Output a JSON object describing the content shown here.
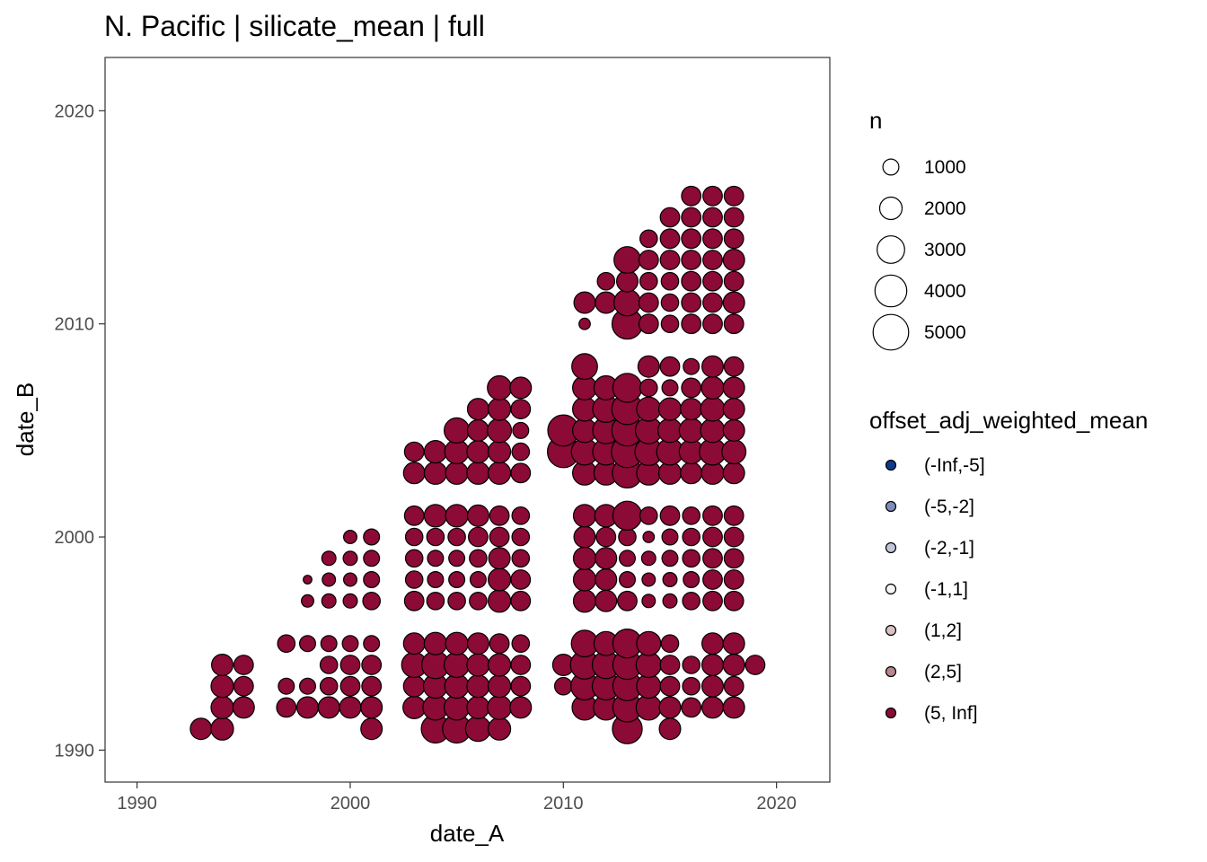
{
  "chart_data": {
    "type": "scatter",
    "title": "N. Pacific | silicate_mean | full",
    "xlabel": "date_A",
    "ylabel": "date_B",
    "xlim": [
      1988.5,
      2022.5
    ],
    "ylim": [
      1988.5,
      2022.5
    ],
    "x_ticks": [
      1990,
      2000,
      2010,
      2020
    ],
    "y_ticks": [
      1990,
      2000,
      2010,
      2020
    ],
    "grid": false,
    "legend_position": "right",
    "size_legend": {
      "title": "n",
      "entries": [
        {
          "label": "1000",
          "value": 1000
        },
        {
          "label": "2000",
          "value": 2000
        },
        {
          "label": "3000",
          "value": 3000
        },
        {
          "label": "4000",
          "value": 4000
        },
        {
          "label": "5000",
          "value": 5000
        }
      ]
    },
    "color_legend": {
      "title": "offset_adj_weighted_mean",
      "entries": [
        {
          "label": "(-Inf,-5]",
          "color": "#0d3b8c"
        },
        {
          "label": "(-5,-2]",
          "color": "#7e8dbb"
        },
        {
          "label": "(-2,-1]",
          "color": "#c2c5db"
        },
        {
          "label": "(-1,1]",
          "color": "#f5f5f5"
        },
        {
          "label": "(1,2]",
          "color": "#dbc0c4"
        },
        {
          "label": "(2,5]",
          "color": "#b7868f"
        },
        {
          "label": "(5, Inf]",
          "color": "#8b0a36"
        }
      ]
    },
    "series_color_class": "(5, Inf]",
    "points": [
      [
        1993,
        1991,
        1800
      ],
      [
        1994,
        1991,
        2000
      ],
      [
        1994,
        1992,
        2000
      ],
      [
        1994,
        1993,
        2000
      ],
      [
        1994,
        1994,
        1800
      ],
      [
        1995,
        1992,
        1800
      ],
      [
        1995,
        1993,
        1500
      ],
      [
        1995,
        1994,
        1500
      ],
      [
        1997,
        1992,
        1500
      ],
      [
        1997,
        1993,
        1000
      ],
      [
        1997,
        1995,
        1200
      ],
      [
        1998,
        1992,
        1800
      ],
      [
        1998,
        1993,
        1000
      ],
      [
        1998,
        1995,
        1000
      ],
      [
        1998,
        1997,
        600
      ],
      [
        1998,
        1998,
        300
      ],
      [
        1999,
        1992,
        1800
      ],
      [
        1999,
        1993,
        1200
      ],
      [
        1999,
        1994,
        1200
      ],
      [
        1999,
        1995,
        1000
      ],
      [
        1999,
        1997,
        800
      ],
      [
        1999,
        1998,
        700
      ],
      [
        1999,
        1999,
        800
      ],
      [
        2000,
        1992,
        1800
      ],
      [
        2000,
        1993,
        1500
      ],
      [
        2000,
        1994,
        1500
      ],
      [
        2000,
        1995,
        1000
      ],
      [
        2000,
        1997,
        800
      ],
      [
        2000,
        1998,
        700
      ],
      [
        2000,
        1999,
        800
      ],
      [
        2000,
        2000,
        700
      ],
      [
        2001,
        1991,
        1800
      ],
      [
        2001,
        1992,
        1800
      ],
      [
        2001,
        1993,
        1500
      ],
      [
        2001,
        1994,
        1500
      ],
      [
        2001,
        1995,
        1000
      ],
      [
        2001,
        1997,
        1200
      ],
      [
        2001,
        1998,
        1000
      ],
      [
        2001,
        1999,
        1000
      ],
      [
        2001,
        2000,
        1000
      ],
      [
        2003,
        1992,
        2000
      ],
      [
        2003,
        1993,
        1800
      ],
      [
        2003,
        1994,
        2500
      ],
      [
        2003,
        1995,
        1800
      ],
      [
        2003,
        1997,
        1500
      ],
      [
        2003,
        1998,
        1200
      ],
      [
        2003,
        1999,
        1200
      ],
      [
        2003,
        2000,
        1200
      ],
      [
        2003,
        2001,
        1500
      ],
      [
        2003,
        2003,
        1800
      ],
      [
        2003,
        2004,
        1500
      ],
      [
        2004,
        1991,
        3200
      ],
      [
        2004,
        1992,
        2500
      ],
      [
        2004,
        1993,
        2300
      ],
      [
        2004,
        1994,
        3000
      ],
      [
        2004,
        1995,
        2000
      ],
      [
        2004,
        1997,
        1200
      ],
      [
        2004,
        1998,
        1000
      ],
      [
        2004,
        1999,
        1000
      ],
      [
        2004,
        2000,
        1200
      ],
      [
        2004,
        2001,
        2000
      ],
      [
        2004,
        2003,
        2000
      ],
      [
        2004,
        2004,
        2000
      ],
      [
        2005,
        1991,
        3200
      ],
      [
        2005,
        1992,
        2500
      ],
      [
        2005,
        1993,
        2300
      ],
      [
        2005,
        1994,
        2500
      ],
      [
        2005,
        1995,
        2000
      ],
      [
        2005,
        1997,
        1200
      ],
      [
        2005,
        1998,
        1000
      ],
      [
        2005,
        1999,
        1000
      ],
      [
        2005,
        2000,
        1200
      ],
      [
        2005,
        2001,
        2000
      ],
      [
        2005,
        2003,
        2000
      ],
      [
        2005,
        2004,
        2300
      ],
      [
        2005,
        2005,
        2500
      ],
      [
        2006,
        1991,
        2500
      ],
      [
        2006,
        1992,
        2000
      ],
      [
        2006,
        1993,
        2000
      ],
      [
        2006,
        1994,
        2000
      ],
      [
        2006,
        1995,
        1800
      ],
      [
        2006,
        1997,
        1200
      ],
      [
        2006,
        1998,
        1000
      ],
      [
        2006,
        1999,
        1200
      ],
      [
        2006,
        2000,
        1500
      ],
      [
        2006,
        2001,
        1800
      ],
      [
        2006,
        2003,
        2000
      ],
      [
        2006,
        2004,
        2000
      ],
      [
        2006,
        2005,
        1800
      ],
      [
        2006,
        2006,
        1800
      ],
      [
        2007,
        1991,
        2000
      ],
      [
        2007,
        1992,
        2300
      ],
      [
        2007,
        1993,
        2000
      ],
      [
        2007,
        1994,
        2000
      ],
      [
        2007,
        1995,
        1500
      ],
      [
        2007,
        1997,
        2000
      ],
      [
        2007,
        1998,
        2000
      ],
      [
        2007,
        1999,
        1800
      ],
      [
        2007,
        2000,
        1500
      ],
      [
        2007,
        2001,
        1500
      ],
      [
        2007,
        2003,
        2000
      ],
      [
        2007,
        2004,
        2000
      ],
      [
        2007,
        2005,
        2300
      ],
      [
        2007,
        2006,
        2000
      ],
      [
        2007,
        2007,
        2300
      ],
      [
        2008,
        1992,
        1800
      ],
      [
        2008,
        1993,
        1500
      ],
      [
        2008,
        1994,
        1500
      ],
      [
        2008,
        1995,
        1200
      ],
      [
        2008,
        1997,
        1500
      ],
      [
        2008,
        1998,
        1500
      ],
      [
        2008,
        1999,
        1200
      ],
      [
        2008,
        2000,
        1200
      ],
      [
        2008,
        2001,
        1200
      ],
      [
        2008,
        2003,
        1500
      ],
      [
        2008,
        2004,
        1200
      ],
      [
        2008,
        2005,
        1000
      ],
      [
        2008,
        2006,
        1500
      ],
      [
        2008,
        2007,
        1800
      ],
      [
        2010,
        1993,
        1200
      ],
      [
        2010,
        1994,
        1800
      ],
      [
        2010,
        2004,
        4000
      ],
      [
        2010,
        2005,
        3800
      ],
      [
        2011,
        1992,
        2500
      ],
      [
        2011,
        1993,
        3000
      ],
      [
        2011,
        1994,
        3200
      ],
      [
        2011,
        1995,
        2800
      ],
      [
        2011,
        1997,
        2000
      ],
      [
        2011,
        1998,
        2000
      ],
      [
        2011,
        1999,
        2000
      ],
      [
        2011,
        2000,
        1800
      ],
      [
        2011,
        2001,
        2000
      ],
      [
        2011,
        2003,
        2300
      ],
      [
        2011,
        2004,
        2800
      ],
      [
        2011,
        2005,
        2300
      ],
      [
        2011,
        2006,
        2300
      ],
      [
        2011,
        2007,
        2300
      ],
      [
        2011,
        2008,
        2600
      ],
      [
        2011,
        2010,
        500
      ],
      [
        2011,
        2011,
        1800
      ],
      [
        2012,
        1992,
        2500
      ],
      [
        2012,
        1993,
        3000
      ],
      [
        2012,
        1994,
        3000
      ],
      [
        2012,
        1995,
        2300
      ],
      [
        2012,
        1997,
        1800
      ],
      [
        2012,
        1998,
        1800
      ],
      [
        2012,
        1999,
        1800
      ],
      [
        2012,
        2000,
        1500
      ],
      [
        2012,
        2001,
        2000
      ],
      [
        2012,
        2003,
        2300
      ],
      [
        2012,
        2004,
        2800
      ],
      [
        2012,
        2005,
        2800
      ],
      [
        2012,
        2006,
        2800
      ],
      [
        2012,
        2007,
        2300
      ],
      [
        2012,
        2011,
        1800
      ],
      [
        2012,
        2012,
        1200
      ],
      [
        2013,
        1991,
        3500
      ],
      [
        2013,
        1992,
        3300
      ],
      [
        2013,
        1993,
        3300
      ],
      [
        2013,
        1994,
        3300
      ],
      [
        2013,
        1995,
        3300
      ],
      [
        2013,
        1997,
        1500
      ],
      [
        2013,
        1998,
        1000
      ],
      [
        2013,
        1999,
        1000
      ],
      [
        2013,
        2000,
        1200
      ],
      [
        2013,
        2001,
        3300
      ],
      [
        2013,
        2003,
        3500
      ],
      [
        2013,
        2004,
        4000
      ],
      [
        2013,
        2005,
        3800
      ],
      [
        2013,
        2006,
        3800
      ],
      [
        2013,
        2007,
        3300
      ],
      [
        2013,
        2010,
        3700
      ],
      [
        2013,
        2011,
        2800
      ],
      [
        2013,
        2012,
        1800
      ],
      [
        2013,
        2013,
        2800
      ],
      [
        2014,
        1992,
        2500
      ],
      [
        2014,
        1993,
        2300
      ],
      [
        2014,
        1994,
        2500
      ],
      [
        2014,
        1995,
        2300
      ],
      [
        2014,
        1997,
        700
      ],
      [
        2014,
        1998,
        700
      ],
      [
        2014,
        1999,
        800
      ],
      [
        2014,
        2000,
        500
      ],
      [
        2014,
        2001,
        1200
      ],
      [
        2014,
        2003,
        2300
      ],
      [
        2014,
        2004,
        3000
      ],
      [
        2014,
        2005,
        2800
      ],
      [
        2014,
        2006,
        2300
      ],
      [
        2014,
        2007,
        1200
      ],
      [
        2014,
        2008,
        1800
      ],
      [
        2014,
        2010,
        1500
      ],
      [
        2014,
        2011,
        1500
      ],
      [
        2014,
        2012,
        1200
      ],
      [
        2014,
        2013,
        1500
      ],
      [
        2014,
        2014,
        1200
      ],
      [
        2015,
        1991,
        1800
      ],
      [
        2015,
        1992,
        1800
      ],
      [
        2015,
        1993,
        1500
      ],
      [
        2015,
        1994,
        1500
      ],
      [
        2015,
        1995,
        1200
      ],
      [
        2015,
        1997,
        800
      ],
      [
        2015,
        1998,
        800
      ],
      [
        2015,
        1999,
        1000
      ],
      [
        2015,
        2000,
        1000
      ],
      [
        2015,
        2001,
        1500
      ],
      [
        2015,
        2003,
        2000
      ],
      [
        2015,
        2004,
        2800
      ],
      [
        2015,
        2005,
        2300
      ],
      [
        2015,
        2006,
        2000
      ],
      [
        2015,
        2007,
        1000
      ],
      [
        2015,
        2008,
        1500
      ],
      [
        2015,
        2010,
        1200
      ],
      [
        2015,
        2011,
        1200
      ],
      [
        2015,
        2012,
        1200
      ],
      [
        2015,
        2013,
        1500
      ],
      [
        2015,
        2014,
        1500
      ],
      [
        2015,
        2015,
        1500
      ],
      [
        2016,
        1992,
        1500
      ],
      [
        2016,
        1993,
        1200
      ],
      [
        2016,
        1994,
        1200
      ],
      [
        2016,
        1997,
        1200
      ],
      [
        2016,
        1998,
        1000
      ],
      [
        2016,
        1999,
        1200
      ],
      [
        2016,
        2000,
        1200
      ],
      [
        2016,
        2001,
        1200
      ],
      [
        2016,
        2003,
        1800
      ],
      [
        2016,
        2004,
        2300
      ],
      [
        2016,
        2005,
        2300
      ],
      [
        2016,
        2006,
        1800
      ],
      [
        2016,
        2007,
        1500
      ],
      [
        2016,
        2008,
        1000
      ],
      [
        2016,
        2010,
        1500
      ],
      [
        2016,
        2011,
        1500
      ],
      [
        2016,
        2012,
        1500
      ],
      [
        2016,
        2013,
        1500
      ],
      [
        2016,
        2014,
        1500
      ],
      [
        2016,
        2015,
        1500
      ],
      [
        2016,
        2016,
        1500
      ],
      [
        2017,
        1992,
        1800
      ],
      [
        2017,
        1993,
        1800
      ],
      [
        2017,
        1994,
        1800
      ],
      [
        2017,
        1995,
        1800
      ],
      [
        2017,
        1997,
        1500
      ],
      [
        2017,
        1998,
        1500
      ],
      [
        2017,
        1999,
        1500
      ],
      [
        2017,
        2000,
        1500
      ],
      [
        2017,
        2001,
        1500
      ],
      [
        2017,
        2003,
        2000
      ],
      [
        2017,
        2004,
        2800
      ],
      [
        2017,
        2005,
        2300
      ],
      [
        2017,
        2006,
        2300
      ],
      [
        2017,
        2007,
        2000
      ],
      [
        2017,
        2008,
        1800
      ],
      [
        2017,
        2010,
        1500
      ],
      [
        2017,
        2011,
        1500
      ],
      [
        2017,
        2012,
        1500
      ],
      [
        2017,
        2013,
        1500
      ],
      [
        2017,
        2014,
        1500
      ],
      [
        2017,
        2015,
        1500
      ],
      [
        2017,
        2016,
        1500
      ],
      [
        2018,
        1992,
        1800
      ],
      [
        2018,
        1993,
        1500
      ],
      [
        2018,
        1994,
        1800
      ],
      [
        2018,
        1995,
        1800
      ],
      [
        2018,
        1997,
        1500
      ],
      [
        2018,
        1998,
        1500
      ],
      [
        2018,
        1999,
        1500
      ],
      [
        2018,
        2000,
        1500
      ],
      [
        2018,
        2001,
        1500
      ],
      [
        2018,
        2003,
        1800
      ],
      [
        2018,
        2004,
        2300
      ],
      [
        2018,
        2005,
        1800
      ],
      [
        2018,
        2006,
        1800
      ],
      [
        2018,
        2007,
        1800
      ],
      [
        2018,
        2008,
        1500
      ],
      [
        2018,
        2010,
        1500
      ],
      [
        2018,
        2011,
        1800
      ],
      [
        2018,
        2012,
        1500
      ],
      [
        2018,
        2013,
        1800
      ],
      [
        2018,
        2014,
        1500
      ],
      [
        2018,
        2015,
        1500
      ],
      [
        2018,
        2016,
        1500
      ],
      [
        2019,
        1994,
        1500
      ]
    ]
  }
}
